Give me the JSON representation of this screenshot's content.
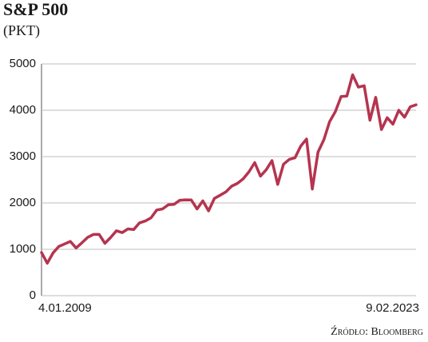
{
  "chart_data": {
    "type": "line",
    "title": "S&P 500",
    "subtitle": "(PKT)",
    "source": "Źródło: Bloomberg",
    "categories": [
      "4.01.2009",
      null,
      null,
      null,
      null,
      null,
      null,
      null,
      null,
      null,
      null,
      null,
      null,
      null,
      null,
      null,
      null,
      null,
      null,
      null,
      null,
      null,
      null,
      null,
      null,
      null,
      null,
      null,
      null,
      null,
      null,
      null,
      null,
      null,
      null,
      null,
      null,
      null,
      null,
      null,
      null,
      null,
      null,
      null,
      null,
      null,
      null,
      null,
      null,
      null,
      null,
      null,
      null,
      null,
      null,
      null,
      null,
      null,
      null,
      null,
      null,
      null,
      null,
      null,
      null,
      "9.02.2023"
    ],
    "values": [
      930,
      700,
      920,
      1060,
      1115,
      1170,
      1030,
      1140,
      1257,
      1320,
      1320,
      1130,
      1257,
      1400,
      1360,
      1440,
      1426,
      1570,
      1610,
      1680,
      1848,
      1870,
      1960,
      1970,
      2058,
      2067,
      2063,
      1870,
      2044,
      1830,
      2099,
      2168,
      2239,
      2362,
      2423,
      2519,
      2673,
      2870,
      2580,
      2718,
      2913,
      2400,
      2834,
      2941,
      2976,
      3230,
      3380,
      2300,
      3100,
      3363,
      3756,
      3972,
      4297,
      4307,
      4766,
      4500,
      4530,
      3785,
      4280,
      3585,
      3839,
      3700,
      4000,
      3850,
      4076,
      4117
    ],
    "color": "#b5344f",
    "ylim": [
      0,
      5000
    ],
    "yticks": [
      0,
      1000,
      2000,
      3000,
      4000,
      5000
    ],
    "grid": true
  }
}
